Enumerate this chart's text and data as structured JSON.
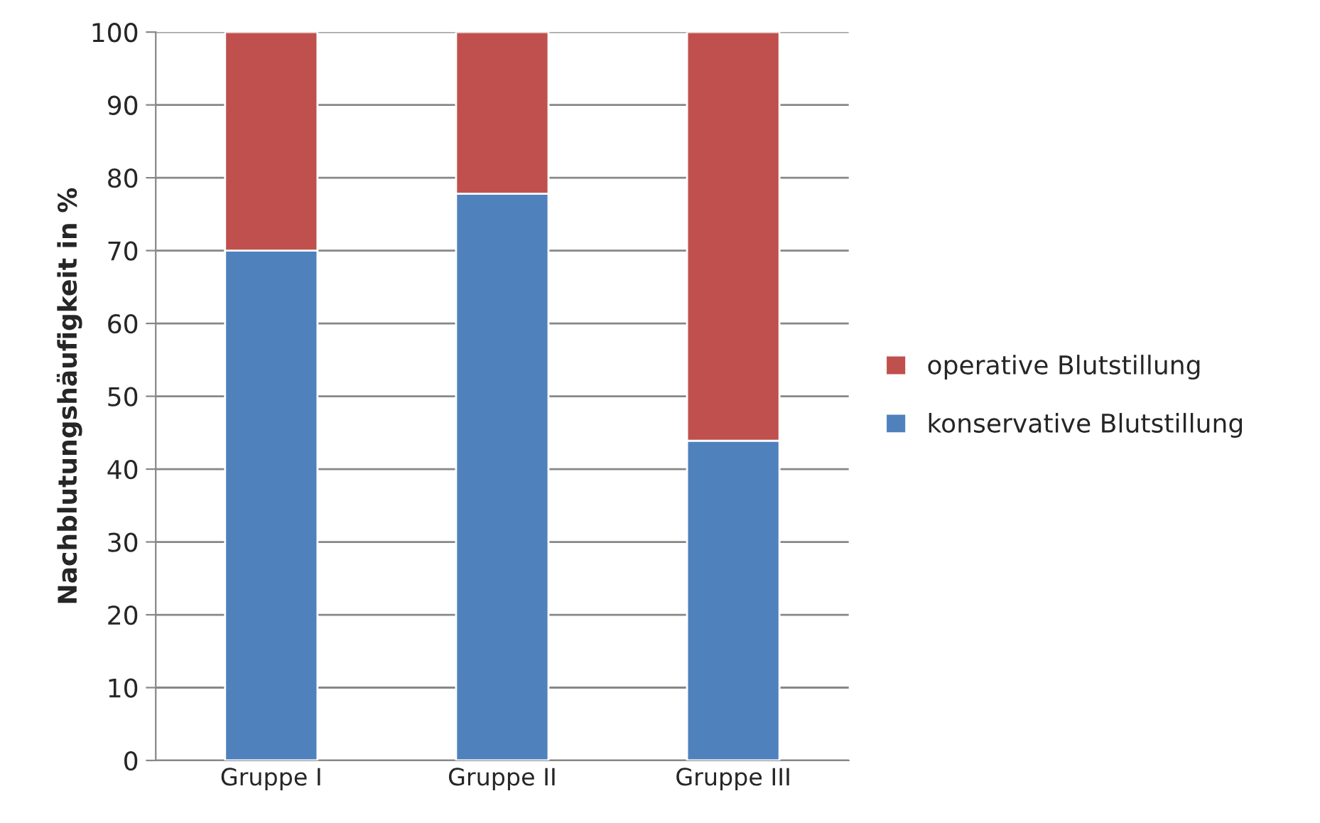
{
  "chart_data": {
    "type": "bar",
    "stacked": true,
    "ylabel": "Nachblutungshäufigkeit in %",
    "categories": [
      "Gruppe I",
      "Gruppe II",
      "Gruppe III"
    ],
    "series": [
      {
        "name": "konservative Blutstillung",
        "color": "#4f81bd",
        "values": [
          70,
          77.8,
          43.9
        ]
      },
      {
        "name": "operative Blutstillung",
        "color": "#c0504d",
        "values": [
          30,
          22.2,
          56.1
        ]
      }
    ],
    "ylim": [
      0,
      100
    ],
    "yticks": [
      0,
      10,
      20,
      30,
      40,
      50,
      60,
      70,
      80,
      90,
      100
    ],
    "grid": "y",
    "legend": "right"
  }
}
